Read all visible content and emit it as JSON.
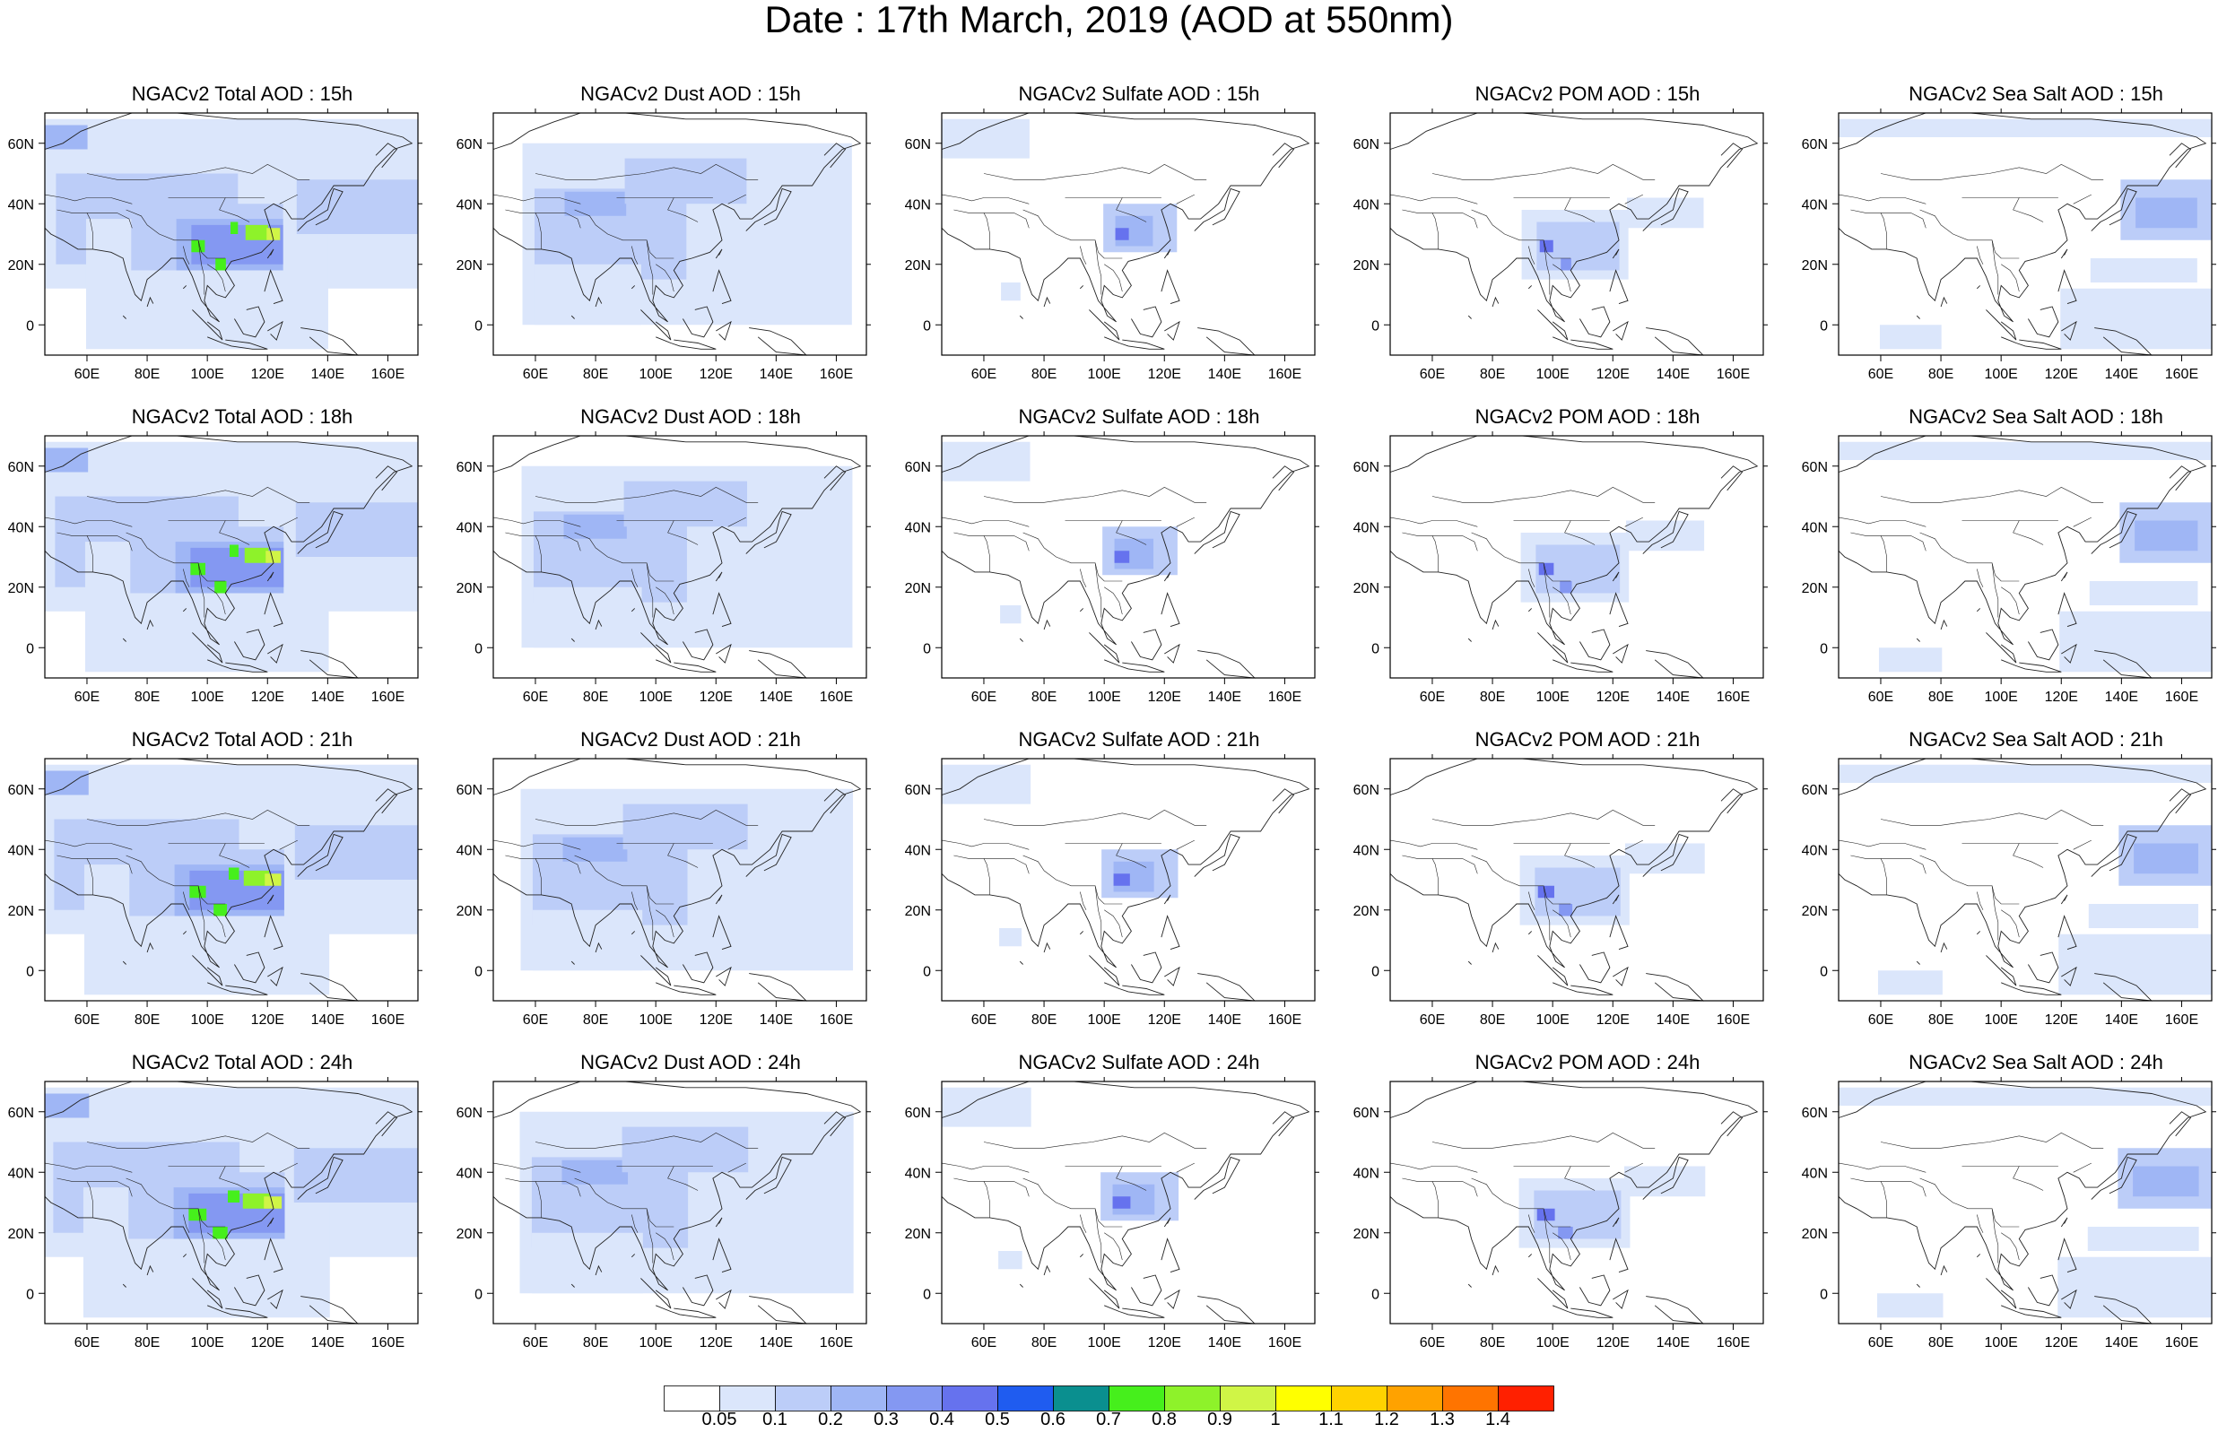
{
  "title": "Date : 17th March, 2019 (AOD at 550nm)",
  "axes": {
    "x_ticks": [
      "60E",
      "80E",
      "100E",
      "120E",
      "140E",
      "160E"
    ],
    "y_ticks": [
      "60N",
      "40N",
      "20N",
      "0"
    ]
  },
  "panels": [
    {
      "title": "NGACv2 Total AOD : 15h",
      "species": "total",
      "hour": "15h"
    },
    {
      "title": "NGACv2 Dust AOD : 15h",
      "species": "dust",
      "hour": "15h"
    },
    {
      "title": "NGACv2 Sulfate AOD : 15h",
      "species": "sulfate",
      "hour": "15h"
    },
    {
      "title": "NGACv2 POM AOD : 15h",
      "species": "pom",
      "hour": "15h"
    },
    {
      "title": "NGACv2 Sea Salt AOD : 15h",
      "species": "seasalt",
      "hour": "15h"
    },
    {
      "title": "NGACv2 Total AOD : 18h",
      "species": "total",
      "hour": "18h"
    },
    {
      "title": "NGACv2 Dust AOD : 18h",
      "species": "dust",
      "hour": "18h"
    },
    {
      "title": "NGACv2 Sulfate AOD : 18h",
      "species": "sulfate",
      "hour": "18h"
    },
    {
      "title": "NGACv2 POM AOD : 18h",
      "species": "pom",
      "hour": "18h"
    },
    {
      "title": "NGACv2 Sea Salt AOD : 18h",
      "species": "seasalt",
      "hour": "18h"
    },
    {
      "title": "NGACv2 Total AOD : 21h",
      "species": "total",
      "hour": "21h"
    },
    {
      "title": "NGACv2 Dust AOD : 21h",
      "species": "dust",
      "hour": "21h"
    },
    {
      "title": "NGACv2 Sulfate AOD : 21h",
      "species": "sulfate",
      "hour": "21h"
    },
    {
      "title": "NGACv2 POM AOD : 21h",
      "species": "pom",
      "hour": "21h"
    },
    {
      "title": "NGACv2 Sea Salt AOD : 21h",
      "species": "seasalt",
      "hour": "21h"
    },
    {
      "title": "NGACv2 Total AOD : 24h",
      "species": "total",
      "hour": "24h"
    },
    {
      "title": "NGACv2 Dust AOD : 24h",
      "species": "dust",
      "hour": "24h"
    },
    {
      "title": "NGACv2 Sulfate AOD : 24h",
      "species": "sulfate",
      "hour": "24h"
    },
    {
      "title": "NGACv2 POM AOD : 24h",
      "species": "pom",
      "hour": "24h"
    },
    {
      "title": "NGACv2 Sea Salt  AOD : 24h",
      "species": "seasalt",
      "hour": "24h"
    }
  ],
  "colorbar": {
    "labels": [
      "0.05",
      "0.1",
      "0.2",
      "0.3",
      "0.4",
      "0.5",
      "0.6",
      "0.7",
      "0.8",
      "0.9",
      "1",
      "1.1",
      "1.2",
      "1.3",
      "1.4"
    ],
    "colors": [
      "#ffffff",
      "#dbe6fb",
      "#bccdf8",
      "#9fb6f5",
      "#8498f2",
      "#6672ee",
      "#1f5cf0",
      "#0a8f8f",
      "#46ef1c",
      "#8ef22a",
      "#d0f546",
      "#ffff00",
      "#ffd200",
      "#ffa200",
      "#ff7400",
      "#ff2000"
    ]
  }
}
